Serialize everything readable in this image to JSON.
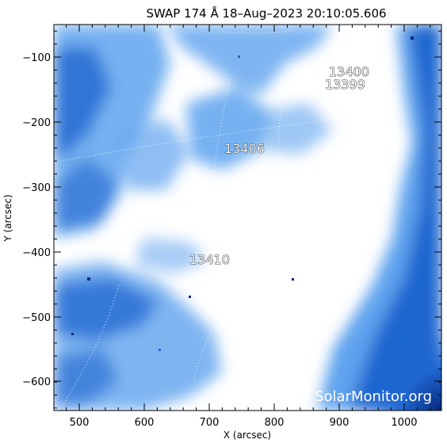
{
  "title": "SWAP 174 Å 18–Aug–2023 20:10:05.606",
  "x_axis": {
    "label": "X (arcsec)",
    "ticks": [
      "500",
      "600",
      "700",
      "800",
      "900",
      "1000"
    ]
  },
  "y_axis": {
    "label": "Y (arcsec)",
    "ticks": [
      "−100",
      "−200",
      "−300",
      "−400",
      "−500",
      "−600"
    ]
  },
  "active_regions": [
    {
      "number": "13400"
    },
    {
      "number": "13399"
    },
    {
      "number": "13406"
    },
    {
      "number": "13410"
    }
  ],
  "watermark": "SolarMonitor.org",
  "colors": {
    "saturated": "#ffffff",
    "bright": "#cfe6ff",
    "mid": "#5ea3ee",
    "deep": "#1f66cf",
    "dark": "#062a80"
  }
}
